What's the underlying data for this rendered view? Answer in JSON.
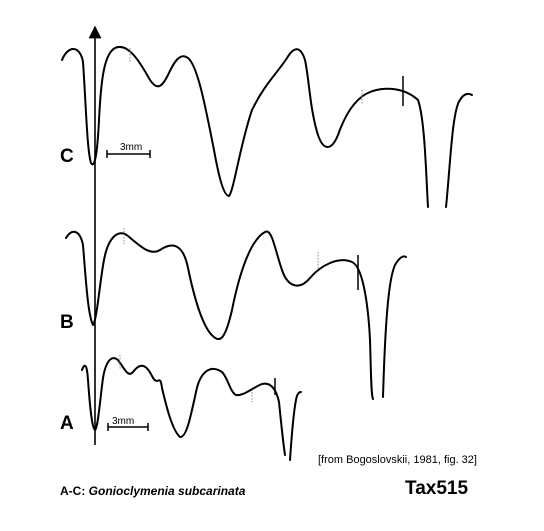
{
  "figure": {
    "sutures": [
      {
        "label": "C",
        "scale_label": "3mm"
      },
      {
        "label": "B",
        "scale_label": ""
      },
      {
        "label": "A",
        "scale_label": "3mm"
      }
    ],
    "source_note": "[from Bogoslovskii, 1981, fig. 32]",
    "caption_prefix": "A-C: ",
    "caption_species": "Gonioclymenia subcarinata",
    "taxon_id": "Tax515",
    "stroke_color": "#000000",
    "dotted_color": "#888888"
  }
}
